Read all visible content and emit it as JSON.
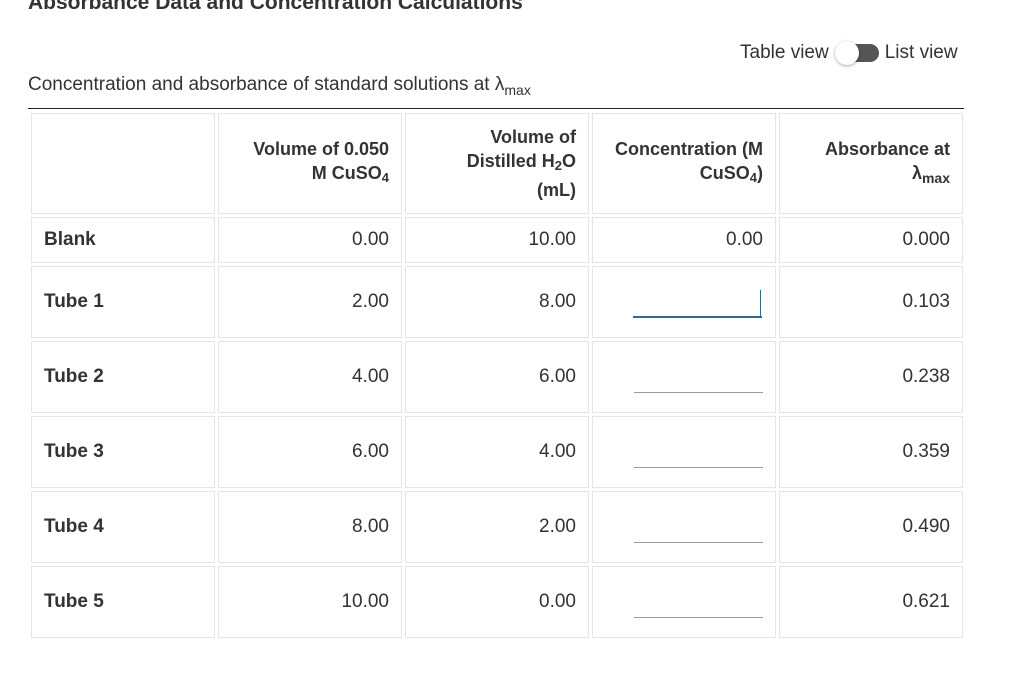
{
  "page_title": "Absorbance Data and Concentration Calculations",
  "view_toggle": {
    "left_label": "Table view",
    "right_label": "List view",
    "selected": "List view"
  },
  "caption": {
    "text": "Concentration and absorbance of standard solutions at λ",
    "subscript": "max"
  },
  "table": {
    "headers": {
      "label": "",
      "volume_cuso4": {
        "line1": "Volume of 0.050",
        "line2_prefix": "M CuSO",
        "line2_sub": "4"
      },
      "volume_h2o": {
        "line1": "Volume of",
        "line2_prefix": "Distilled H",
        "line2_sub": "2",
        "line2_suffix": "O",
        "line3": "(mL)"
      },
      "concentration": {
        "line1": "Concentration (M",
        "line2_prefix": "CuSO",
        "line2_sub": "4",
        "line2_suffix": ")"
      },
      "absorbance": {
        "line1": "Absorbance at",
        "line2_prefix": "λ",
        "line2_sub": "max"
      }
    },
    "rows": [
      {
        "label": "Blank",
        "volume_cuso4": "0.00",
        "volume_h2o": "10.00",
        "concentration": "0.00",
        "absorbance": "0.000"
      },
      {
        "label": "Tube 1",
        "volume_cuso4": "2.00",
        "volume_h2o": "8.00",
        "concentration": "",
        "absorbance": "0.103"
      },
      {
        "label": "Tube 2",
        "volume_cuso4": "4.00",
        "volume_h2o": "6.00",
        "concentration": "",
        "absorbance": "0.238"
      },
      {
        "label": "Tube 3",
        "volume_cuso4": "6.00",
        "volume_h2o": "4.00",
        "concentration": "",
        "absorbance": "0.359"
      },
      {
        "label": "Tube 4",
        "volume_cuso4": "8.00",
        "volume_h2o": "2.00",
        "concentration": "",
        "absorbance": "0.490"
      },
      {
        "label": "Tube 5",
        "volume_cuso4": "10.00",
        "volume_h2o": "0.00",
        "concentration": "",
        "absorbance": "0.621"
      }
    ]
  },
  "colors": {
    "focus_accent": "#2d6a8f",
    "toggle_track": "#555555",
    "text": "#333333",
    "cell_border": "#e5e5e5"
  }
}
